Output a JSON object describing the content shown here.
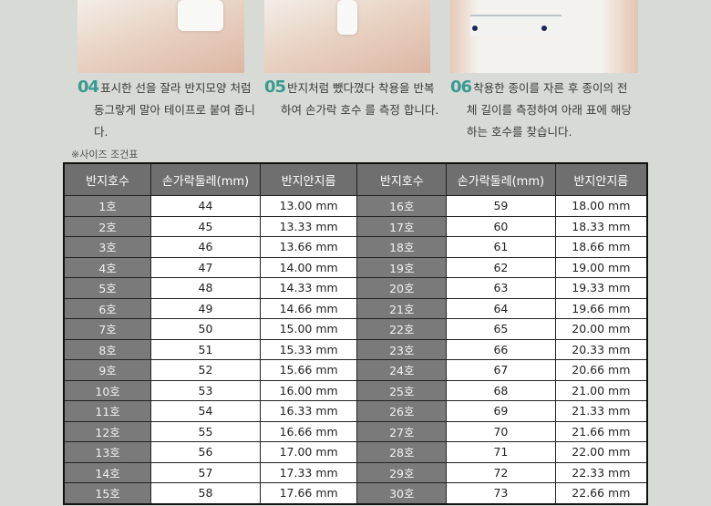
{
  "steps": [
    {
      "num": "04",
      "line1": "표시한 선을 잘라 반지모양 처럼",
      "rest": "동그랗게 말아 테이프로 붙여 줍니다."
    },
    {
      "num": "05",
      "line1": "반지처럼 뺐다꼈다 착용을 반복",
      "rest": "하여 손가락 호수 를 측정 합니다."
    },
    {
      "num": "06",
      "line1": "착용한 종이를 자른 후 종이의 전",
      "rest": "체 길이를 측정하여 아래 표에 해당하는 호수를 찾습니다."
    }
  ],
  "note": "※사이즈 조건표",
  "table": {
    "headers": [
      "반지호수",
      "손가락둘레(mm)",
      "반지안지름",
      "반지호수",
      "손가락둘레(mm)",
      "반지안지름"
    ],
    "rows": [
      [
        "1호",
        "44",
        "13.00 mm",
        "16호",
        "59",
        "18.00 mm"
      ],
      [
        "2호",
        "45",
        "13.33 mm",
        "17호",
        "60",
        "18.33 mm"
      ],
      [
        "3호",
        "46",
        "13.66 mm",
        "18호",
        "61",
        "18.66 mm"
      ],
      [
        "4호",
        "47",
        "14.00 mm",
        "19호",
        "62",
        "19.00 mm"
      ],
      [
        "5호",
        "48",
        "14.33 mm",
        "20호",
        "63",
        "19.33 mm"
      ],
      [
        "6호",
        "49",
        "14.66 mm",
        "21호",
        "64",
        "19.66 mm"
      ],
      [
        "7호",
        "50",
        "15.00 mm",
        "22호",
        "65",
        "20.00 mm"
      ],
      [
        "8호",
        "51",
        "15.33 mm",
        "23호",
        "66",
        "20.33 mm"
      ],
      [
        "9호",
        "52",
        "15.66 mm",
        "24호",
        "67",
        "20.66 mm"
      ],
      [
        "10호",
        "53",
        "16.00 mm",
        "25호",
        "68",
        "21.00 mm"
      ],
      [
        "11호",
        "54",
        "16.33 mm",
        "26호",
        "69",
        "21.33 mm"
      ],
      [
        "12호",
        "55",
        "16.66 mm",
        "27호",
        "70",
        "21.66 mm"
      ],
      [
        "13호",
        "56",
        "17.00 mm",
        "28호",
        "71",
        "22.00 mm"
      ],
      [
        "14호",
        "57",
        "17.33 mm",
        "29호",
        "72",
        "22.33 mm"
      ],
      [
        "15호",
        "58",
        "17.66 mm",
        "30호",
        "73",
        "22.66 mm"
      ]
    ]
  },
  "colors": {
    "accent": "#3a9a92",
    "header_bg": "#6f6f6f",
    "size_cell_bg": "#7a7a7a",
    "background": "#d8dad6"
  }
}
